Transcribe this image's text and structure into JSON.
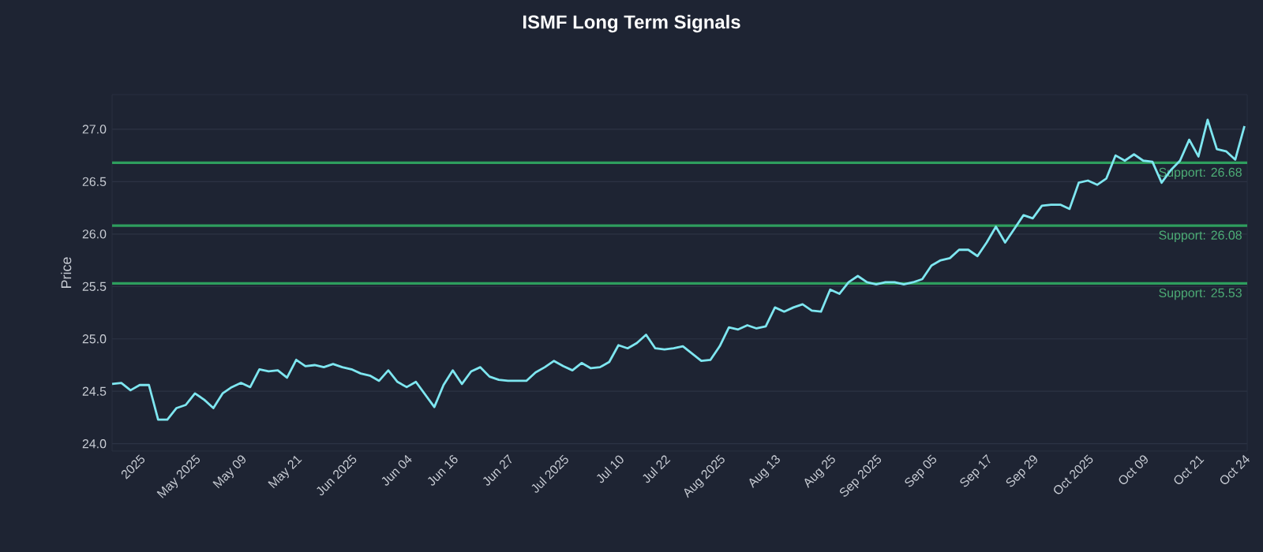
{
  "chart_data": {
    "type": "line",
    "title": "ISMF Long Term Signals",
    "ylabel": "Price",
    "categories": [
      null,
      null,
      null,
      "2025",
      null,
      null,
      null,
      null,
      null,
      "May 2025",
      null,
      null,
      null,
      null,
      "May 09",
      null,
      null,
      null,
      null,
      null,
      "May 21",
      null,
      null,
      null,
      null,
      null,
      "Jun 2025",
      null,
      null,
      null,
      null,
      null,
      "Jun 04",
      null,
      null,
      null,
      null,
      "Jun 16",
      null,
      null,
      null,
      null,
      null,
      "Jun 27",
      null,
      null,
      null,
      null,
      null,
      "Jul 2025",
      null,
      null,
      null,
      null,
      null,
      "Jul 10",
      null,
      null,
      null,
      null,
      "Jul 22",
      null,
      null,
      null,
      null,
      null,
      "Aug 2025",
      null,
      null,
      null,
      null,
      null,
      "Aug 13",
      null,
      null,
      null,
      null,
      null,
      "Aug 25",
      null,
      null,
      null,
      null,
      "Sep 2025",
      null,
      null,
      null,
      null,
      null,
      "Sep 05",
      null,
      null,
      null,
      null,
      null,
      "Sep 17",
      null,
      null,
      null,
      null,
      "Sep 29",
      null,
      null,
      null,
      null,
      null,
      "Oct 2025",
      null,
      null,
      null,
      null,
      null,
      "Oct 09",
      null,
      null,
      null,
      null,
      null,
      "Oct 21",
      null,
      null,
      null,
      null,
      "Oct 24"
    ],
    "series": [
      {
        "color": "#7ee6f0",
        "values": [
          24.57,
          24.58,
          24.51,
          24.56,
          24.56,
          24.23,
          24.23,
          24.34,
          24.37,
          24.48,
          24.42,
          24.34,
          24.48,
          24.54,
          24.58,
          24.54,
          24.71,
          24.69,
          24.7,
          24.63,
          24.8,
          24.74,
          24.75,
          24.73,
          24.76,
          24.73,
          24.71,
          24.67,
          24.65,
          24.6,
          24.7,
          24.59,
          24.54,
          24.59,
          24.47,
          24.35,
          24.56,
          24.7,
          24.57,
          24.69,
          24.73,
          24.64,
          24.61,
          24.6,
          24.6,
          24.6,
          24.68,
          24.73,
          24.79,
          24.74,
          24.7,
          24.77,
          24.72,
          24.73,
          24.78,
          24.94,
          24.91,
          24.96,
          25.04,
          24.91,
          24.9,
          24.91,
          24.93,
          24.86,
          24.79,
          24.8,
          24.93,
          25.11,
          25.09,
          25.13,
          25.1,
          25.12,
          25.3,
          25.26,
          25.3,
          25.33,
          25.27,
          25.26,
          25.47,
          25.43,
          25.54,
          25.6,
          25.54,
          25.52,
          25.54,
          25.54,
          25.52,
          25.54,
          25.57,
          25.7,
          25.75,
          25.77,
          25.85,
          25.85,
          25.79,
          25.92,
          26.07,
          25.92,
          26.05,
          26.18,
          26.15,
          26.27,
          26.28,
          26.28,
          26.24,
          26.49,
          26.51,
          26.47,
          26.53,
          26.75,
          26.7,
          26.76,
          26.7,
          26.69,
          26.49,
          26.61,
          26.7,
          26.9,
          26.74,
          27.09,
          26.81,
          26.79,
          26.71,
          27.03
        ]
      }
    ],
    "ylim": [
      23.93,
      27.33
    ],
    "yticks": [
      {
        "value": 24.0,
        "label": "24.0"
      },
      {
        "value": 24.5,
        "label": "24.5"
      },
      {
        "value": 25.0,
        "label": "25.0"
      },
      {
        "value": 25.5,
        "label": "25.5"
      },
      {
        "value": 26.0,
        "label": "26.0"
      },
      {
        "value": 26.5,
        "label": "26.5"
      },
      {
        "value": 27.0,
        "label": "27.0"
      }
    ],
    "grid": "y",
    "marker": "none",
    "line_style": "solid",
    "ref_lines": [
      {
        "axis": "y",
        "value": 26.68,
        "label": "Support: 26.68",
        "color": "#2e9e5e"
      },
      {
        "axis": "y",
        "value": 26.08,
        "label": "Support: 26.08",
        "color": "#2e9e5e"
      },
      {
        "axis": "y",
        "value": 25.53,
        "label": "Support: 25.53",
        "color": "#2e9e5e"
      }
    ]
  }
}
